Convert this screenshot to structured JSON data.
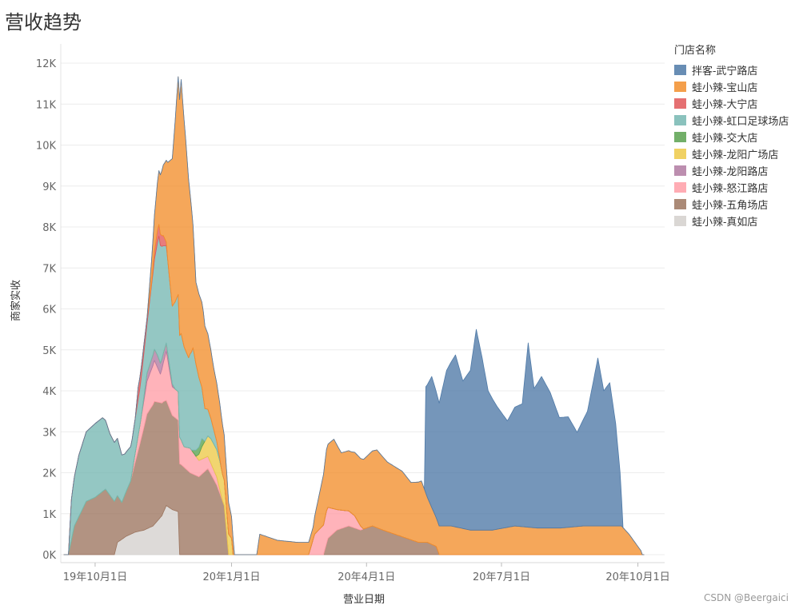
{
  "title": "营收趋势",
  "watermark": "CSDN @Beergaici",
  "legend": {
    "title": "门店名称"
  },
  "chart_data": {
    "type": "area",
    "stacked": true,
    "xlabel": "营业日期",
    "ylabel": "商家实收",
    "x_range": [
      "2019-09-10",
      "2020-10-05"
    ],
    "x_ticks": [
      {
        "date": "2019-10-01",
        "label": "19年10月1日"
      },
      {
        "date": "2020-01-01",
        "label": "20年1月1日"
      },
      {
        "date": "2020-04-01",
        "label": "20年4月1日"
      },
      {
        "date": "2020-07-01",
        "label": "20年7月1日"
      },
      {
        "date": "2020-10-01",
        "label": "20年10月1日"
      }
    ],
    "ylim": [
      0,
      12500
    ],
    "y_ticks": [
      {
        "value": 0,
        "label": "0K"
      },
      {
        "value": 1000,
        "label": "1K"
      },
      {
        "value": 2000,
        "label": "2K"
      },
      {
        "value": 3000,
        "label": "3K"
      },
      {
        "value": 4000,
        "label": "4K"
      },
      {
        "value": 5000,
        "label": "5K"
      },
      {
        "value": 6000,
        "label": "6K"
      },
      {
        "value": 7000,
        "label": "7K"
      },
      {
        "value": 8000,
        "label": "8K"
      },
      {
        "value": 9000,
        "label": "9K"
      },
      {
        "value": 10000,
        "label": "10K"
      },
      {
        "value": 11000,
        "label": "11K"
      },
      {
        "value": 12000,
        "label": "12K"
      }
    ],
    "grid": true,
    "legend_position": "right",
    "series": [
      {
        "name": "拌客-武宁路店",
        "color": "#4e79a7",
        "points": [
          [
            "2020-05-10",
            0
          ],
          [
            "2020-05-11",
            2600
          ],
          [
            "2020-05-15",
            3200
          ],
          [
            "2020-05-20",
            3000
          ],
          [
            "2020-05-25",
            3800
          ],
          [
            "2020-05-31",
            4200
          ],
          [
            "2020-06-05",
            3600
          ],
          [
            "2020-06-10",
            3900
          ],
          [
            "2020-06-14",
            4900
          ],
          [
            "2020-06-18",
            4200
          ],
          [
            "2020-06-22",
            3400
          ],
          [
            "2020-06-28",
            3000
          ],
          [
            "2020-07-05",
            2600
          ],
          [
            "2020-07-10",
            2900
          ],
          [
            "2020-07-15",
            3000
          ],
          [
            "2020-07-19",
            4500
          ],
          [
            "2020-07-23",
            3400
          ],
          [
            "2020-07-28",
            3700
          ],
          [
            "2020-08-03",
            3300
          ],
          [
            "2020-08-09",
            2700
          ],
          [
            "2020-08-15",
            2700
          ],
          [
            "2020-08-21",
            2300
          ],
          [
            "2020-08-28",
            2800
          ],
          [
            "2020-09-04",
            4100
          ],
          [
            "2020-09-08",
            3300
          ],
          [
            "2020-09-12",
            3500
          ],
          [
            "2020-09-16",
            2500
          ],
          [
            "2020-09-19",
            1300
          ],
          [
            "2020-09-21",
            0
          ]
        ]
      },
      {
        "name": "蛙小辣-宝山店",
        "color": "#f28e2b",
        "points": [
          [
            "2019-11-05",
            0
          ],
          [
            "2019-11-10",
            900
          ],
          [
            "2019-11-18",
            2000
          ],
          [
            "2019-11-23",
            4000
          ],
          [
            "2019-11-28",
            6200
          ],
          [
            "2019-12-01",
            5200
          ],
          [
            "2019-12-05",
            3500
          ],
          [
            "2019-12-08",
            2000
          ],
          [
            "2019-12-13",
            2100
          ],
          [
            "2019-12-20",
            1500
          ],
          [
            "2019-12-25",
            1300
          ],
          [
            "2019-12-29",
            900
          ],
          [
            "2020-01-02",
            400
          ],
          [
            "2020-01-03",
            0
          ],
          [
            "2020-01-18",
            0
          ],
          [
            "2020-01-20",
            500
          ],
          [
            "2020-02-01",
            350
          ],
          [
            "2020-02-15",
            300
          ],
          [
            "2020-02-25",
            300
          ],
          [
            "2020-03-05",
            1500
          ],
          [
            "2020-03-10",
            1700
          ],
          [
            "2020-03-15",
            1400
          ],
          [
            "2020-03-22",
            1500
          ],
          [
            "2020-03-30",
            1700
          ],
          [
            "2020-04-08",
            1900
          ],
          [
            "2020-04-15",
            1700
          ],
          [
            "2020-04-25",
            1600
          ],
          [
            "2020-05-01",
            1400
          ],
          [
            "2020-05-08",
            1500
          ],
          [
            "2020-05-12",
            1100
          ],
          [
            "2020-05-18",
            700
          ],
          [
            "2020-05-28",
            700
          ],
          [
            "2020-06-10",
            600
          ],
          [
            "2020-06-25",
            600
          ],
          [
            "2020-07-10",
            700
          ],
          [
            "2020-07-25",
            650
          ],
          [
            "2020-08-10",
            650
          ],
          [
            "2020-08-25",
            700
          ],
          [
            "2020-09-10",
            700
          ],
          [
            "2020-09-20",
            700
          ],
          [
            "2020-09-25",
            500
          ],
          [
            "2020-10-03",
            100
          ],
          [
            "2020-10-04",
            0
          ]
        ]
      },
      {
        "name": "蛙小辣-大宁店",
        "color": "#e15759",
        "points": [
          [
            "2019-10-28",
            0
          ],
          [
            "2019-10-30",
            300
          ],
          [
            "2019-11-03",
            200
          ],
          [
            "2019-11-08",
            50
          ],
          [
            "2019-11-12",
            300
          ],
          [
            "2019-11-16",
            250
          ],
          [
            "2019-11-19",
            0
          ]
        ]
      },
      {
        "name": "蛙小辣-虹口足球场店",
        "color": "#76b7b2",
        "points": [
          [
            "2019-09-13",
            0
          ],
          [
            "2019-09-15",
            1000
          ],
          [
            "2019-09-20",
            1500
          ],
          [
            "2019-09-25",
            1700
          ],
          [
            "2019-10-01",
            1800
          ],
          [
            "2019-10-06",
            1800
          ],
          [
            "2019-10-11",
            1500
          ],
          [
            "2019-10-16",
            1400
          ],
          [
            "2019-10-21",
            1000
          ],
          [
            "2019-10-26",
            800
          ],
          [
            "2019-10-31",
            900
          ],
          [
            "2019-11-05",
            1200
          ],
          [
            "2019-11-10",
            2200
          ],
          [
            "2019-11-13",
            3000
          ],
          [
            "2019-11-17",
            2500
          ],
          [
            "2019-11-22",
            1900
          ],
          [
            "2019-11-28",
            2600
          ],
          [
            "2019-12-03",
            2200
          ],
          [
            "2019-12-06",
            2500
          ],
          [
            "2019-12-10",
            1700
          ],
          [
            "2019-12-14",
            800
          ],
          [
            "2019-12-18",
            500
          ],
          [
            "2019-12-22",
            200
          ],
          [
            "2019-12-25",
            0
          ]
        ]
      },
      {
        "name": "蛙小辣-交大店",
        "color": "#59a14f",
        "points": [
          [
            "2019-12-05",
            0
          ],
          [
            "2019-12-08",
            150
          ],
          [
            "2019-12-12",
            200
          ],
          [
            "2019-12-14",
            0
          ]
        ]
      },
      {
        "name": "蛙小辣-龙阳广场店",
        "color": "#edc948",
        "points": [
          [
            "2019-12-08",
            0
          ],
          [
            "2019-12-12",
            300
          ],
          [
            "2019-12-18",
            600
          ],
          [
            "2019-12-24",
            700
          ],
          [
            "2019-12-28",
            600
          ],
          [
            "2020-01-01",
            400
          ],
          [
            "2020-01-02",
            0
          ]
        ]
      },
      {
        "name": "蛙小辣-龙阳路店",
        "color": "#b07aa1",
        "points": [
          [
            "2019-11-01",
            0
          ],
          [
            "2019-11-05",
            200
          ],
          [
            "2019-11-12",
            300
          ],
          [
            "2019-11-18",
            200
          ],
          [
            "2019-11-24",
            0
          ]
        ]
      },
      {
        "name": "蛙小辣-怒江路店",
        "color": "#ff9da7",
        "points": [
          [
            "2019-10-25",
            0
          ],
          [
            "2019-10-29",
            300
          ],
          [
            "2019-11-05",
            800
          ],
          [
            "2019-11-10",
            1000
          ],
          [
            "2019-11-14",
            700
          ],
          [
            "2019-11-18",
            1200
          ],
          [
            "2019-11-22",
            700
          ],
          [
            "2019-11-26",
            700
          ],
          [
            "2019-11-30",
            500
          ],
          [
            "2019-12-04",
            600
          ],
          [
            "2019-12-10",
            400
          ],
          [
            "2019-12-16",
            300
          ],
          [
            "2019-12-22",
            200
          ],
          [
            "2019-12-26",
            0
          ],
          [
            "2020-02-22",
            0
          ],
          [
            "2020-02-26",
            500
          ],
          [
            "2020-03-05",
            800
          ],
          [
            "2020-03-12",
            500
          ],
          [
            "2020-03-18",
            400
          ],
          [
            "2020-03-24",
            300
          ],
          [
            "2020-03-30",
            0
          ]
        ]
      },
      {
        "name": "蛙小辣-五角场店",
        "color": "#9c755f",
        "points": [
          [
            "2019-09-13",
            0
          ],
          [
            "2019-09-17",
            700
          ],
          [
            "2019-09-25",
            1300
          ],
          [
            "2019-10-01",
            1400
          ],
          [
            "2019-10-08",
            1600
          ],
          [
            "2019-10-14",
            1300
          ],
          [
            "2019-10-19",
            900
          ],
          [
            "2019-10-25",
            1300
          ],
          [
            "2019-10-31",
            2100
          ],
          [
            "2019-11-05",
            2800
          ],
          [
            "2019-11-10",
            3000
          ],
          [
            "2019-11-16",
            2700
          ],
          [
            "2019-11-22",
            2300
          ],
          [
            "2019-11-28",
            2200
          ],
          [
            "2019-12-04",
            2000
          ],
          [
            "2019-12-10",
            1900
          ],
          [
            "2019-12-16",
            2100
          ],
          [
            "2019-12-22",
            1700
          ],
          [
            "2019-12-27",
            1200
          ],
          [
            "2019-12-30",
            0
          ],
          [
            "2020-03-03",
            0
          ],
          [
            "2020-03-06",
            400
          ],
          [
            "2020-03-12",
            600
          ],
          [
            "2020-03-20",
            700
          ],
          [
            "2020-03-28",
            600
          ],
          [
            "2020-04-05",
            700
          ],
          [
            "2020-04-12",
            600
          ],
          [
            "2020-04-20",
            500
          ],
          [
            "2020-04-28",
            400
          ],
          [
            "2020-05-06",
            300
          ],
          [
            "2020-05-12",
            300
          ],
          [
            "2020-05-18",
            200
          ],
          [
            "2020-05-20",
            0
          ]
        ]
      },
      {
        "name": "蛙小辣-真如店",
        "color": "#d3d0cd",
        "points": [
          [
            "2019-10-14",
            0
          ],
          [
            "2019-10-16",
            300
          ],
          [
            "2019-10-22",
            450
          ],
          [
            "2019-10-28",
            550
          ],
          [
            "2019-11-03",
            600
          ],
          [
            "2019-11-09",
            700
          ],
          [
            "2019-11-15",
            950
          ],
          [
            "2019-11-18",
            1200
          ],
          [
            "2019-11-22",
            1100
          ],
          [
            "2019-11-26",
            1050
          ],
          [
            "2019-11-27",
            0
          ]
        ]
      }
    ]
  }
}
